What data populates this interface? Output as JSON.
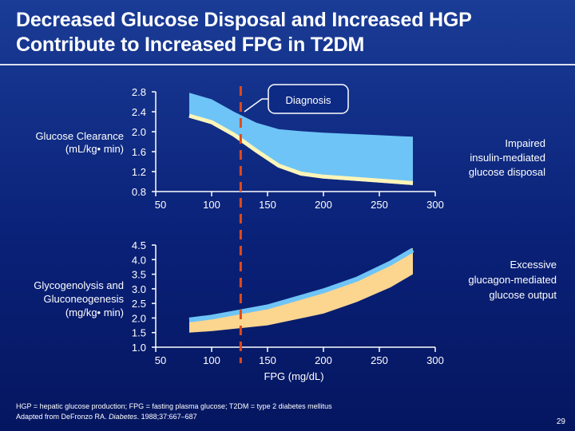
{
  "slide": {
    "title_line1": "Decreased Glucose Disposal and Increased HGP",
    "title_line2": "Contribute to Increased FPG in T2DM",
    "footnote_line1": "HGP = hepatic glucose production; FPG = fasting plasma glucose; T2DM = type 2 diabetes mellitus",
    "footnote_prefix": "Adapted from DeFronzo RA. ",
    "footnote_journal": "Diabetes",
    "footnote_suffix": ". 1988;37:667–687",
    "page_number": "29"
  },
  "colors": {
    "band_top_fill": "#6ec4f6",
    "band_top_edge": "#fff5b8",
    "band_bottom_fill": "#fcd58f",
    "band_bottom_edge": "#6ec4f6",
    "diagnosis_line": "#e04a1a",
    "text": "#ffffff"
  },
  "chart_data": [
    {
      "type": "area",
      "title": "",
      "ylabel_line1": "Glucose Clearance",
      "ylabel_line2": "(mL/kg• min)",
      "xlabel": "",
      "xlim": [
        50,
        300
      ],
      "ylim": [
        0.8,
        2.8
      ],
      "x_ticks": [
        "50",
        "100",
        "150",
        "200",
        "250",
        "300"
      ],
      "y_ticks": [
        "2.8",
        "2.4",
        "2.0",
        "1.6",
        "1.2",
        "0.8"
      ],
      "band": {
        "x": [
          80,
          100,
          120,
          140,
          160,
          180,
          200,
          250,
          280
        ],
        "upper": [
          2.78,
          2.65,
          2.4,
          2.18,
          2.05,
          2.01,
          1.98,
          1.93,
          1.9
        ],
        "lower": [
          2.28,
          2.15,
          1.9,
          1.58,
          1.28,
          1.12,
          1.06,
          0.98,
          0.93
        ]
      },
      "annotation_marker": "Diagnosis",
      "annotation_side": "Impaired insulin-mediated glucose disposal",
      "annotation_side_lines": [
        "Impaired",
        "insulin-mediated",
        "glucose disposal"
      ],
      "diagnosis_x": 126
    },
    {
      "type": "area",
      "title": "",
      "ylabel_lines": [
        "Glycogenolysis and",
        "Gluconeogenesis",
        "(mg/kg• min)"
      ],
      "xlabel": "FPG (mg/dL)",
      "xlim": [
        50,
        300
      ],
      "ylim": [
        1.0,
        4.5
      ],
      "x_ticks": [
        "50",
        "100",
        "150",
        "200",
        "250",
        "300"
      ],
      "y_ticks": [
        "4.5",
        "4.0",
        "3.5",
        "3.0",
        "2.5",
        "2.0",
        "1.5",
        "1.0"
      ],
      "band": {
        "x": [
          80,
          100,
          150,
          200,
          230,
          260,
          280
        ],
        "upper": [
          2.0,
          2.1,
          2.45,
          3.0,
          3.4,
          3.95,
          4.4
        ],
        "lower": [
          1.5,
          1.55,
          1.75,
          2.15,
          2.55,
          3.05,
          3.5
        ]
      },
      "annotation_side": "Excessive glucagon-mediated glucose output",
      "annotation_side_lines": [
        "Excessive",
        "glucagon-mediated",
        "glucose output"
      ],
      "diagnosis_x": 126
    }
  ]
}
